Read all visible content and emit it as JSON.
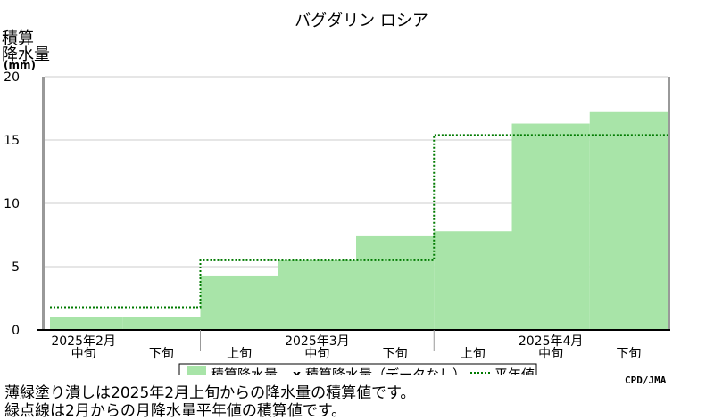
{
  "chart_data": {
    "type": "area",
    "title": "バグダリン ロシア",
    "ylabel_lines": [
      "積算",
      "降水量",
      "(mm)"
    ],
    "ylim": [
      0,
      20
    ],
    "yticks": [
      0,
      5,
      10,
      15,
      20
    ],
    "grid": true,
    "periods": [
      {
        "month": "2025年2月",
        "dekad": "中旬"
      },
      {
        "month": "",
        "dekad": "下旬"
      },
      {
        "month": "",
        "dekad": "上旬"
      },
      {
        "month": "2025年3月",
        "dekad": "中旬"
      },
      {
        "month": "",
        "dekad": "下旬"
      },
      {
        "month": "",
        "dekad": "上旬"
      },
      {
        "month": "2025年4月",
        "dekad": "中旬"
      },
      {
        "month": "",
        "dekad": "下旬"
      }
    ],
    "series": [
      {
        "name": "積算降水量",
        "style": "filled-step",
        "color": "#a8e4a8",
        "values": [
          1.0,
          1.0,
          4.3,
          5.5,
          7.4,
          7.8,
          16.3,
          17.2
        ]
      },
      {
        "name": "平年値",
        "style": "dotted-step",
        "color": "#007a00",
        "values": [
          1.8,
          1.8,
          5.5,
          5.5,
          5.5,
          15.4,
          15.4,
          15.4
        ]
      }
    ],
    "legend": {
      "placement": "bottom-center",
      "filled_label": "積算降水量",
      "missing_marker": "x",
      "missing_label": "積算降水量（データなし）",
      "normal_label": "平年値"
    }
  },
  "credit": "CPD/JMA",
  "notes": [
    "薄緑塗り潰しは2025年2月上旬からの降水量の積算値です。",
    "緑点線は2月からの月降水量平年値の積算値です。"
  ]
}
